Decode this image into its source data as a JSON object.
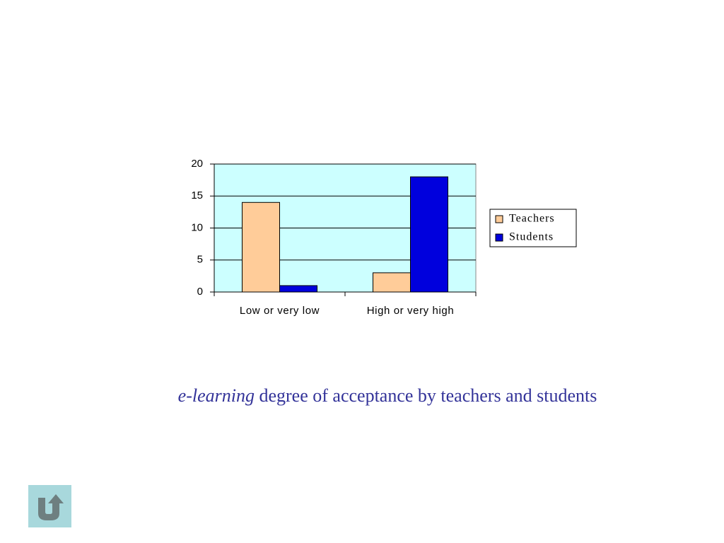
{
  "chart_data": {
    "type": "bar",
    "categories": [
      "Low or very low",
      "High or very high"
    ],
    "series": [
      {
        "name": "Teachers",
        "color": "#ffcc99",
        "values": [
          14,
          3
        ]
      },
      {
        "name": "Students",
        "color": "#0000dd",
        "values": [
          1,
          18
        ]
      }
    ],
    "ylim": [
      0,
      20
    ],
    "yticks": [
      0,
      5,
      10,
      15,
      20
    ],
    "grid": true,
    "plot_background": "#ccffff",
    "legend": "right"
  },
  "caption": {
    "emphasis": "e-learning",
    "text": "degree of acceptance by teachers and students"
  }
}
